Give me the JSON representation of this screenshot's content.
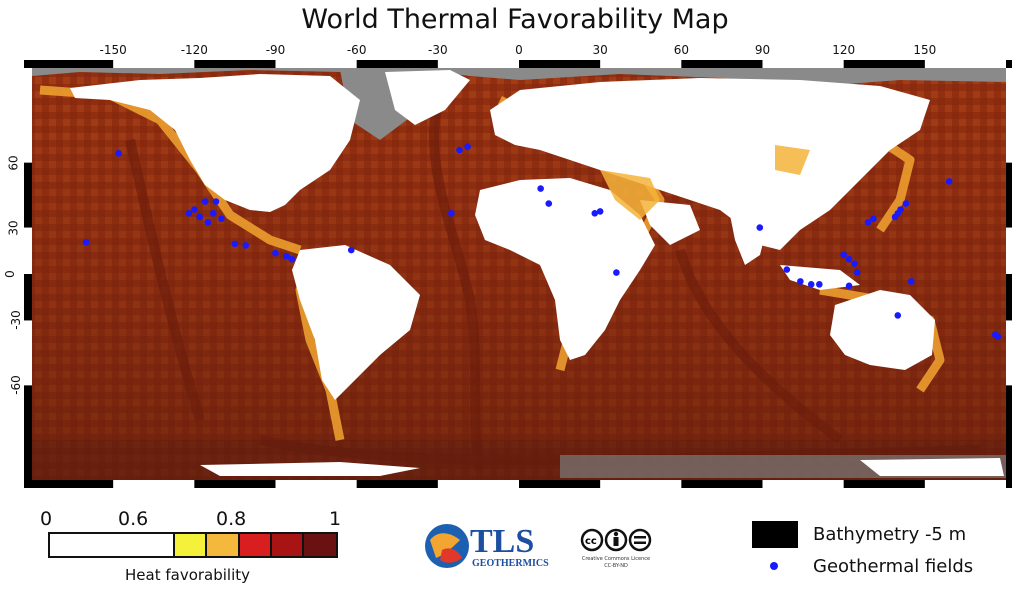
{
  "title": "World Thermal Favorability Map",
  "axes": {
    "longitude_ticks": [
      "-150",
      "-120",
      "-90",
      "-60",
      "-30",
      "0",
      "30",
      "60",
      "90",
      "120",
      "150"
    ],
    "latitude_ticks": [
      "60",
      "30",
      "0",
      "-30",
      "-60"
    ]
  },
  "scale": {
    "labels": [
      "0",
      "0.6",
      "0.8",
      "1"
    ],
    "caption": "Heat favorability",
    "colors": [
      "#ffffff",
      "#f5f03a",
      "#f3b83c",
      "#d81e1e",
      "#a81414",
      "#6a1212"
    ]
  },
  "logo": {
    "brand": "TLS",
    "subbrand": "GEOTHERMICS",
    "license_line1": "Creative Commons Licence",
    "license_line2": "CC-BY-ND"
  },
  "legend": {
    "bathymetry_label": "Bathymetry -5 m",
    "geothermal_label": "Geothermal fields",
    "dot_color": "#1a1aff"
  },
  "colors": {
    "ocean": "#9b3a12",
    "ocean_dark": "#7a230c",
    "land": "#ffffff",
    "ice": "#8a8a8a",
    "coast": "#f2a530"
  },
  "geothermal_fields": [
    {
      "lon": -148,
      "lat": 63
    },
    {
      "lon": -160,
      "lat": 21
    },
    {
      "lon": -122,
      "lat": 38
    },
    {
      "lon": -120,
      "lat": 40
    },
    {
      "lon": -118,
      "lat": 36
    },
    {
      "lon": -116,
      "lat": 44
    },
    {
      "lon": -115,
      "lat": 33
    },
    {
      "lon": -113,
      "lat": 38
    },
    {
      "lon": -112,
      "lat": 44
    },
    {
      "lon": -110,
      "lat": 35
    },
    {
      "lon": -105,
      "lat": 20
    },
    {
      "lon": -101,
      "lat": 19
    },
    {
      "lon": -90,
      "lat": 14
    },
    {
      "lon": -86,
      "lat": 12
    },
    {
      "lon": -84,
      "lat": 10
    },
    {
      "lon": -62,
      "lat": 16
    },
    {
      "lon": -25,
      "lat": 38
    },
    {
      "lon": -22,
      "lat": 64
    },
    {
      "lon": -19,
      "lat": 65
    },
    {
      "lon": 8,
      "lat": 50
    },
    {
      "lon": 11,
      "lat": 43
    },
    {
      "lon": 28,
      "lat": 38
    },
    {
      "lon": 30,
      "lat": 39
    },
    {
      "lon": 36,
      "lat": 1
    },
    {
      "lon": 89,
      "lat": 30
    },
    {
      "lon": 99,
      "lat": 3
    },
    {
      "lon": 104,
      "lat": -5
    },
    {
      "lon": 108,
      "lat": -7
    },
    {
      "lon": 111,
      "lat": -7
    },
    {
      "lon": 120,
      "lat": 13
    },
    {
      "lon": 122,
      "lat": 10
    },
    {
      "lon": 124,
      "lat": 7
    },
    {
      "lon": 125,
      "lat": 1
    },
    {
      "lon": 122,
      "lat": -8
    },
    {
      "lon": 129,
      "lat": 33
    },
    {
      "lon": 131,
      "lat": 35
    },
    {
      "lon": 139,
      "lat": 36
    },
    {
      "lon": 140,
      "lat": 38
    },
    {
      "lon": 141,
      "lat": 40
    },
    {
      "lon": 143,
      "lat": 43
    },
    {
      "lon": 159,
      "lat": 53
    },
    {
      "lon": 145,
      "lat": -5
    },
    {
      "lon": 140,
      "lat": -27
    },
    {
      "lon": 176,
      "lat": -38
    },
    {
      "lon": 177,
      "lat": -39
    }
  ]
}
